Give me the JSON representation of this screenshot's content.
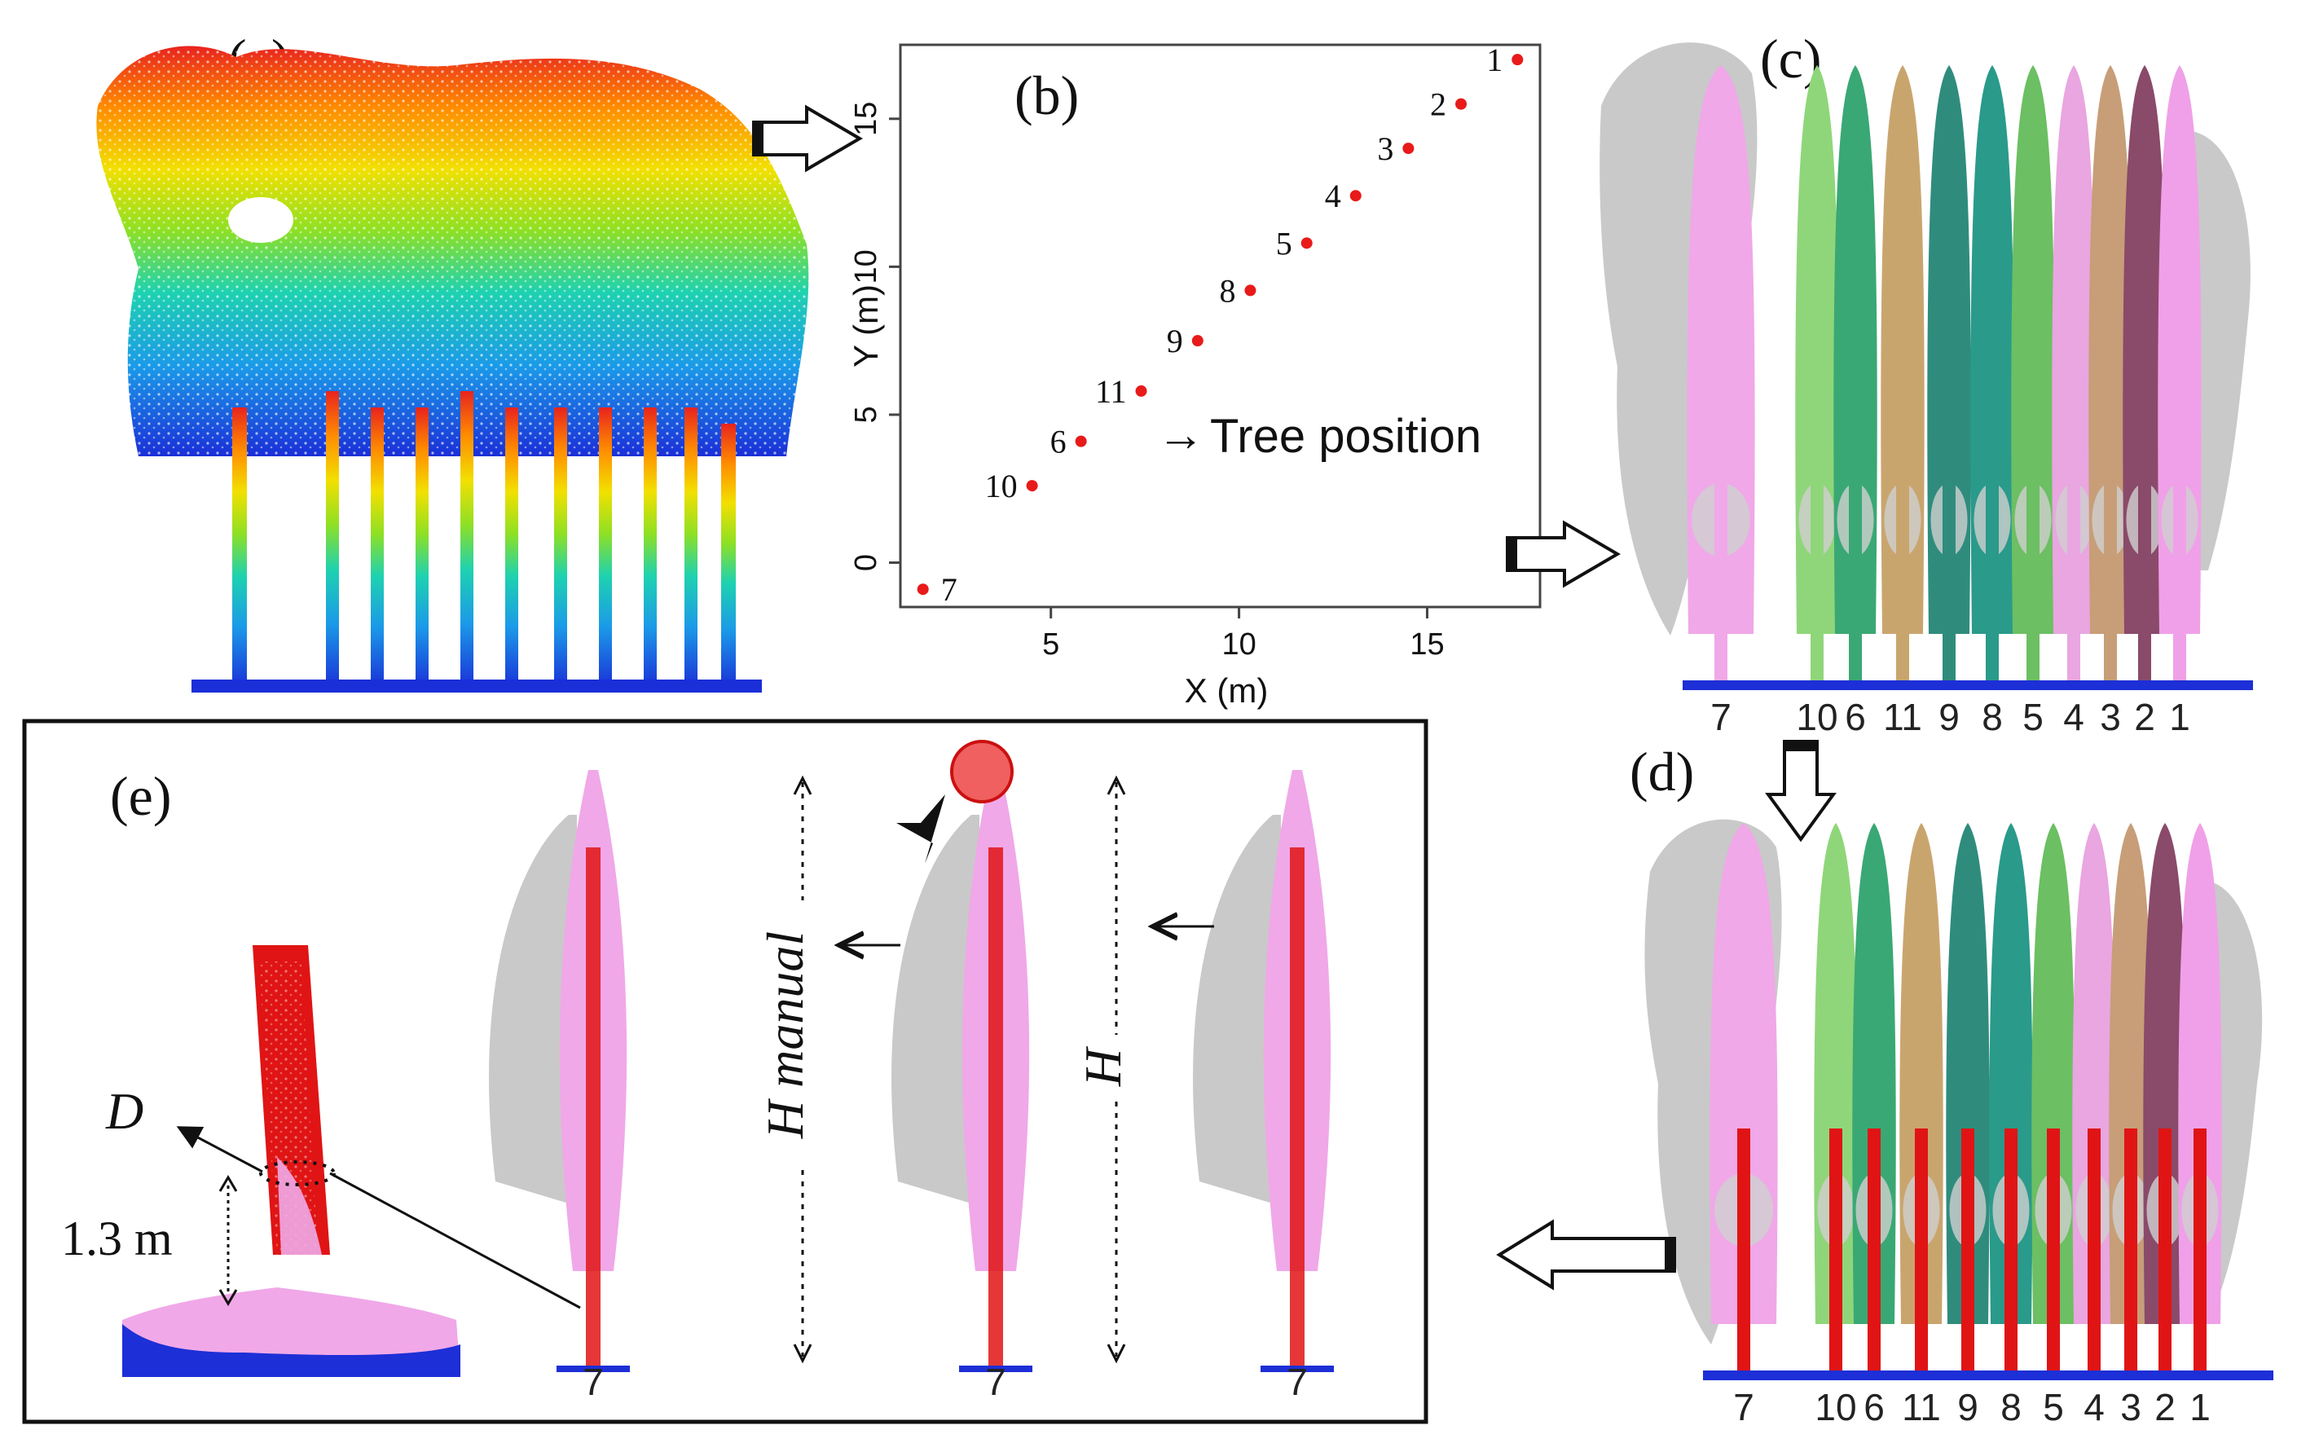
{
  "panels": {
    "a": "(a)",
    "b": "(b)",
    "c": "(c)",
    "d": "(d)",
    "e": "(e)"
  },
  "colors": {
    "gray_crown": "#c9c9c9",
    "pink_tree": "#f0a8e8",
    "red_stem": "#e01414",
    "ground_blue": "#1d2fd6",
    "marker_red": "#e81a1a"
  },
  "chart_data": {
    "type": "scatter",
    "title": "",
    "xlabel": "X (m)",
    "ylabel": "Y (m)",
    "xlim": [
      1,
      18
    ],
    "ylim": [
      -1.5,
      17.5
    ],
    "xticks": [
      "5",
      "10",
      "15"
    ],
    "yticks": [
      "0",
      "5",
      "10",
      "15"
    ],
    "points": [
      {
        "label": "1",
        "x": 17.4,
        "y": 17.0
      },
      {
        "label": "2",
        "x": 15.9,
        "y": 15.5
      },
      {
        "label": "3",
        "x": 14.5,
        "y": 14.0
      },
      {
        "label": "4",
        "x": 13.1,
        "y": 12.4
      },
      {
        "label": "5",
        "x": 11.8,
        "y": 10.8
      },
      {
        "label": "8",
        "x": 10.3,
        "y": 9.2
      },
      {
        "label": "9",
        "x": 8.9,
        "y": 7.5
      },
      {
        "label": "11",
        "x": 7.4,
        "y": 5.8
      },
      {
        "label": "6",
        "x": 5.8,
        "y": 4.1
      },
      {
        "label": "10",
        "x": 4.5,
        "y": 2.6
      },
      {
        "label": "7",
        "x": 1.6,
        "y": -0.9
      }
    ],
    "annotation": "Tree position",
    "annotation_arrow": "→"
  },
  "tree_labels_c": [
    "7",
    "10",
    "6",
    "11",
    "9",
    "8",
    "5",
    "4",
    "3",
    "2",
    "1"
  ],
  "tree_labels_d": [
    "7",
    "10",
    "6",
    "11",
    "9",
    "8",
    "5",
    "4",
    "3",
    "2",
    "1"
  ],
  "tree_labels_c_display": [
    "7",
    "10",
    "6",
    "11",
    "9",
    "8",
    "5",
    "4",
    "3",
    "2",
    "1"
  ],
  "panel_e": {
    "d_label": "D",
    "height_label": "1.3 m",
    "h_manual_label": "H manual",
    "h_label": "H",
    "tree_label_1": "7",
    "tree_label_2": "7",
    "tree_label_3": "7"
  }
}
